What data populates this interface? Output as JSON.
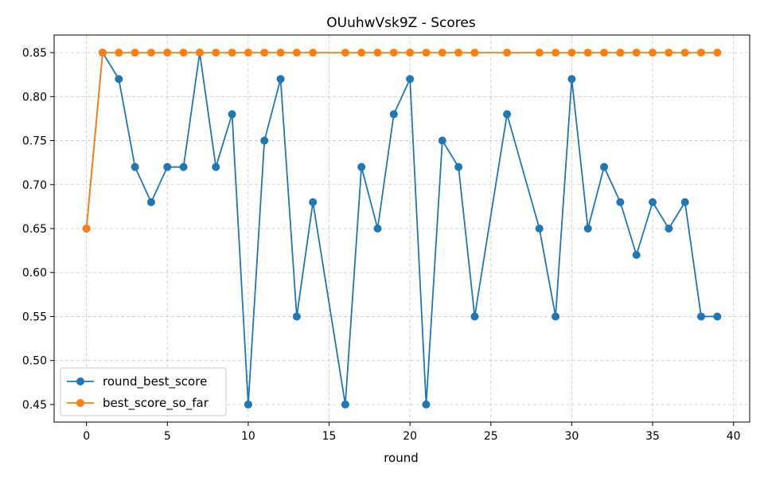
{
  "chart_data": {
    "type": "line",
    "title": "OUuhwVsk9Z - Scores",
    "xlabel": "round",
    "ylabel": "",
    "xlim": [
      -2,
      41
    ],
    "ylim": [
      0.43,
      0.87
    ],
    "xticks": [
      0,
      5,
      10,
      15,
      20,
      25,
      30,
      35,
      40
    ],
    "yticks": [
      0.45,
      0.5,
      0.55,
      0.6,
      0.65,
      0.7,
      0.75,
      0.8,
      0.85
    ],
    "grid": true,
    "legend_position": "lower-left",
    "series": [
      {
        "name": "round_best_score",
        "color": "#1f77b4",
        "x": [
          0,
          1,
          2,
          3,
          4,
          5,
          6,
          7,
          8,
          9,
          10,
          11,
          12,
          13,
          14,
          16,
          17,
          18,
          19,
          20,
          21,
          22,
          23,
          24,
          26,
          28,
          29,
          30,
          31,
          32,
          33,
          34,
          35,
          36,
          37,
          38,
          39
        ],
        "y": [
          0.65,
          0.85,
          0.82,
          0.72,
          0.68,
          0.72,
          0.72,
          0.85,
          0.72,
          0.78,
          0.45,
          0.75,
          0.82,
          0.55,
          0.68,
          0.45,
          0.72,
          0.65,
          0.78,
          0.82,
          0.45,
          0.75,
          0.72,
          0.55,
          0.78,
          0.65,
          0.55,
          0.82,
          0.65,
          0.72,
          0.68,
          0.62,
          0.68,
          0.65,
          0.68,
          0.55,
          0.55
        ]
      },
      {
        "name": "best_score_so_far",
        "color": "#ff7f0e",
        "x": [
          0,
          1,
          2,
          3,
          4,
          5,
          6,
          7,
          8,
          9,
          10,
          11,
          12,
          13,
          14,
          16,
          17,
          18,
          19,
          20,
          21,
          22,
          23,
          24,
          26,
          28,
          29,
          30,
          31,
          32,
          33,
          34,
          35,
          36,
          37,
          38,
          39
        ],
        "y": [
          0.65,
          0.85,
          0.85,
          0.85,
          0.85,
          0.85,
          0.85,
          0.85,
          0.85,
          0.85,
          0.85,
          0.85,
          0.85,
          0.85,
          0.85,
          0.85,
          0.85,
          0.85,
          0.85,
          0.85,
          0.85,
          0.85,
          0.85,
          0.85,
          0.85,
          0.85,
          0.85,
          0.85,
          0.85,
          0.85,
          0.85,
          0.85,
          0.85,
          0.85,
          0.85,
          0.85,
          0.85
        ]
      }
    ]
  }
}
